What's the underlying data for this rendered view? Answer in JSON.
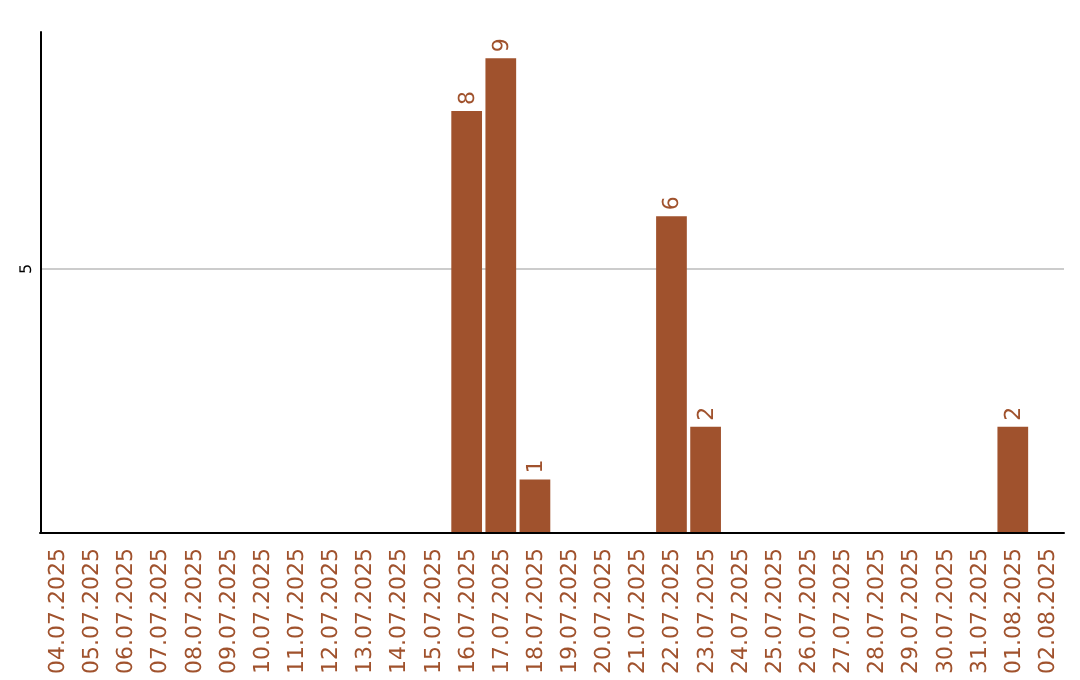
{
  "chart_data": {
    "type": "bar",
    "categories": [
      "04.07.2025",
      "05.07.2025",
      "06.07.2025",
      "07.07.2025",
      "08.07.2025",
      "09.07.2025",
      "10.07.2025",
      "11.07.2025",
      "12.07.2025",
      "13.07.2025",
      "14.07.2025",
      "15.07.2025",
      "16.07.2025",
      "17.07.2025",
      "18.07.2025",
      "19.07.2025",
      "20.07.2025",
      "21.07.2025",
      "22.07.2025",
      "23.07.2025",
      "24.07.2025",
      "25.07.2025",
      "26.07.2025",
      "27.07.2025",
      "28.07.2025",
      "29.07.2025",
      "30.07.2025",
      "31.07.2025",
      "01.08.2025",
      "02.08.2025"
    ],
    "values": [
      null,
      null,
      null,
      null,
      null,
      null,
      null,
      null,
      null,
      null,
      null,
      null,
      8,
      9,
      1,
      null,
      null,
      null,
      6,
      2,
      null,
      null,
      null,
      null,
      null,
      null,
      null,
      null,
      2,
      null
    ],
    "color": "#a0522d",
    "ylim": [
      0,
      9.5
    ],
    "yticks": [
      5
    ],
    "grid": "y",
    "data_labels": true
  }
}
